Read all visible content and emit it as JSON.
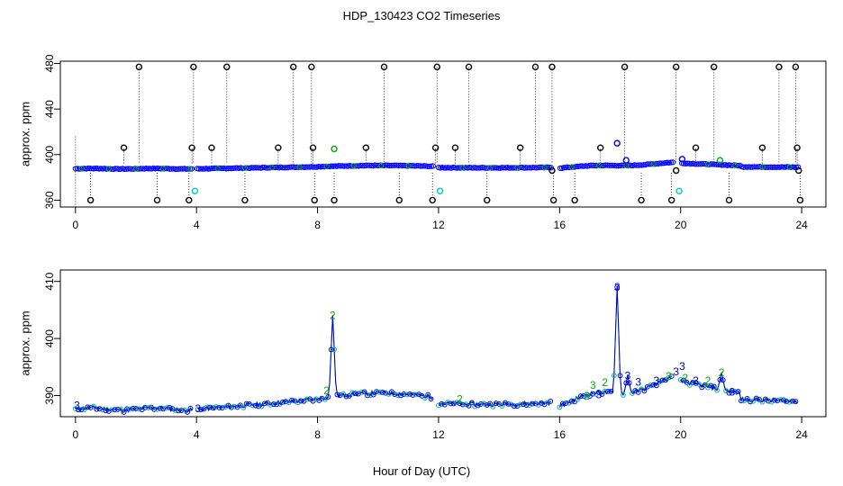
{
  "chart_data": {
    "title": "HDP_130423  CO2 Timeseries",
    "xlabel": "Hour of Day (UTC)",
    "panels": [
      {
        "type": "scatter",
        "ylabel": "approx. ppm",
        "xlim": [
          -0.5,
          24.8
        ],
        "ylim": [
          354,
          482
        ],
        "xticks": [
          0,
          4,
          8,
          12,
          16,
          20,
          24
        ],
        "yticks": [
          360,
          400,
          440,
          480
        ],
        "grid": false,
        "baseline_gaps": [
          [
            3.85,
            4.0
          ],
          [
            11.85,
            12.0
          ],
          [
            15.75,
            16.0
          ],
          [
            19.75,
            20.0
          ]
        ],
        "spikes_high": [
          2.1,
          3.9,
          5.0,
          7.2,
          7.8,
          10.2,
          11.95,
          13.0,
          15.2,
          15.75,
          18.15,
          19.85,
          21.1,
          23.25,
          23.8
        ],
        "spikes_mid": [
          1.6,
          3.85,
          4.5,
          6.7,
          7.85,
          9.6,
          11.9,
          12.55,
          14.7,
          17.35,
          20.5,
          22.7,
          23.85
        ],
        "spikes_low": [
          0.5,
          2.7,
          3.75,
          5.6,
          7.9,
          8.55,
          10.7,
          11.8,
          13.6,
          15.8,
          16.5,
          18.7,
          19.7,
          21.6,
          23.95
        ],
        "extra_points": [
          {
            "x": 3.95,
            "y": 368,
            "color": "#00c8c8"
          },
          {
            "x": 12.05,
            "y": 368,
            "color": "#00c8c8"
          },
          {
            "x": 19.95,
            "y": 368,
            "color": "#00c8c8"
          },
          {
            "x": 8.55,
            "y": 405,
            "color": "#00b000"
          },
          {
            "x": 17.9,
            "y": 410,
            "color": "#0000ff"
          },
          {
            "x": 18.2,
            "y": 395,
            "color": "#0000ff"
          },
          {
            "x": 21.3,
            "y": 395,
            "color": "#00b000"
          },
          {
            "x": 20.05,
            "y": 396,
            "color": "#0000ff"
          },
          {
            "x": 15.75,
            "y": 386,
            "color": "#000000"
          },
          {
            "x": 19.85,
            "y": 386,
            "color": "#000000"
          },
          {
            "x": 23.9,
            "y": 386,
            "color": "#000000"
          }
        ]
      },
      {
        "type": "line",
        "ylabel": "approx. ppm",
        "xlim": [
          -0.5,
          24.8
        ],
        "ylim": [
          386.3,
          412
        ],
        "xticks": [
          0,
          4,
          8,
          12,
          16,
          20,
          24
        ],
        "yticks": [
          390,
          400,
          410
        ],
        "grid": false,
        "baseline_gaps": [
          [
            3.85,
            4.0
          ],
          [
            11.85,
            12.0
          ],
          [
            15.75,
            16.0
          ],
          [
            19.75,
            20.0
          ]
        ],
        "spikes": [
          {
            "x": 8.5,
            "y": 404,
            "label": "2",
            "color": "#00b000"
          },
          {
            "x": 17.9,
            "y": 409,
            "label": "3",
            "color": "#0000cc"
          },
          {
            "x": 18.25,
            "y": 393.5,
            "label": "3",
            "color": "#0000cc"
          },
          {
            "x": 21.35,
            "y": 394,
            "label": "2",
            "color": "#00b000"
          }
        ],
        "point_labels": [
          {
            "x": 0.05,
            "y": 388.3,
            "label": "3",
            "color": "#0000cc"
          },
          {
            "x": 4.05,
            "y": 387.7,
            "label": "3",
            "color": "#0000cc"
          },
          {
            "x": 8.3,
            "y": 390.9,
            "label": "2",
            "color": "#00b000"
          },
          {
            "x": 12.7,
            "y": 389.4,
            "label": "2",
            "color": "#00b000"
          },
          {
            "x": 17.1,
            "y": 391.8,
            "label": "3",
            "color": "#00b000"
          },
          {
            "x": 17.5,
            "y": 392.3,
            "label": "2",
            "color": "#00b000"
          },
          {
            "x": 17.3,
            "y": 390.2,
            "label": "3",
            "color": "#0000cc"
          },
          {
            "x": 16.9,
            "y": 389.9,
            "label": "2",
            "color": "#00b000"
          },
          {
            "x": 18.6,
            "y": 392.4,
            "label": "3",
            "color": "#0000cc"
          },
          {
            "x": 19.2,
            "y": 392.6,
            "label": "3",
            "color": "#0000cc"
          },
          {
            "x": 19.6,
            "y": 393.4,
            "label": "2",
            "color": "#00b000"
          },
          {
            "x": 19.85,
            "y": 394.2,
            "label": "3",
            "color": "#0000cc"
          },
          {
            "x": 20.05,
            "y": 395.1,
            "label": "3",
            "color": "#0000cc"
          },
          {
            "x": 20.15,
            "y": 393.1,
            "label": "2",
            "color": "#00b000"
          },
          {
            "x": 20.5,
            "y": 392.6,
            "label": "3",
            "color": "#0000cc"
          },
          {
            "x": 20.9,
            "y": 392.6,
            "label": "2",
            "color": "#00b000"
          },
          {
            "x": 21.7,
            "y": 390.6,
            "label": "3",
            "color": "#0000cc"
          }
        ]
      }
    ]
  }
}
